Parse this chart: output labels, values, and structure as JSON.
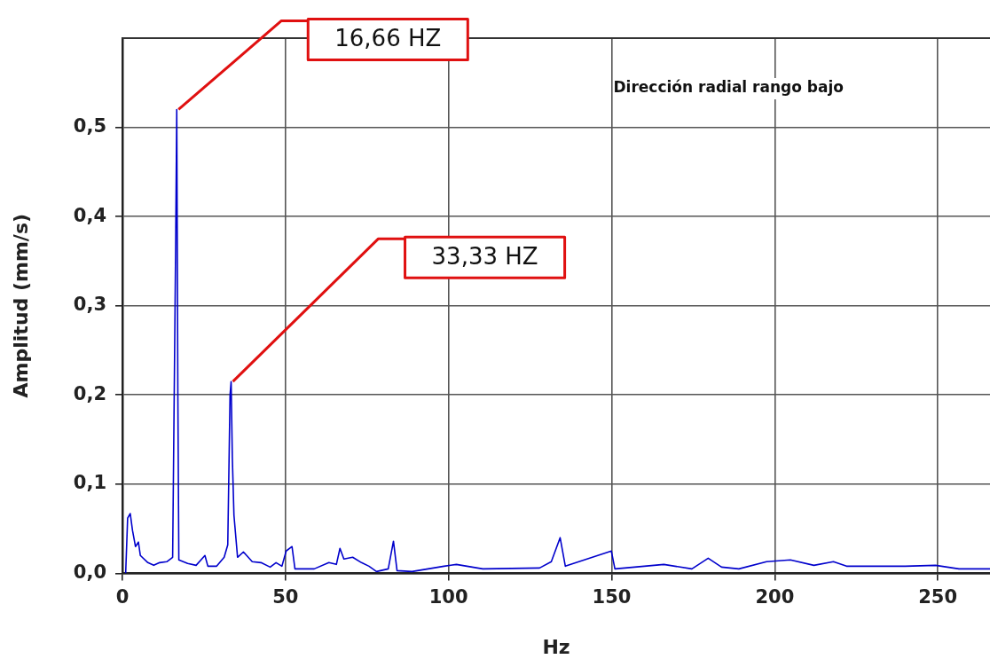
{
  "chart_data": {
    "type": "line",
    "xlabel": "Hz",
    "ylabel": "Amplitud (mm/s)",
    "annotations": [
      "Dirección radial rango bajo",
      {
        "text": "16,66 HZ",
        "x": 16.66,
        "y": 0.52
      },
      {
        "text": "33,33 HZ",
        "x": 33.33,
        "y": 0.215
      }
    ],
    "series": [
      {
        "color": "#0000cc",
        "x": [
          1.0,
          1.6,
          2.4,
          3.1,
          4.0,
          4.9,
          5.5,
          7.8,
          9.6,
          11.4,
          13.6,
          15.4,
          16.3,
          16.66,
          17.0,
          17.3,
          20,
          22.6,
          25.3,
          26.2,
          28.9,
          31.2,
          32.3,
          33.0,
          33.33,
          33.7,
          34.2,
          35.3,
          37.1,
          39.8,
          42.5,
          45.3,
          47.1,
          48.9,
          50.2,
          52.0,
          52.9,
          58.8,
          63.3,
          65.6,
          66.7,
          67.9,
          70.6,
          73.3,
          75.6,
          77.9,
          81.5,
          83.1,
          84.2,
          88.8,
          98.6,
          102.4,
          110.5,
          127.9,
          131.5,
          134.2,
          135.8,
          149.9,
          151,
          166,
          174.6,
          179.6,
          183.7,
          189,
          197.5,
          204.8,
          212,
          218,
          222,
          231,
          240,
          249.3,
          256.5,
          266
        ],
        "values": [
          0,
          0.062,
          0.067,
          0.048,
          0.03,
          0.035,
          0.02,
          0.012,
          0.009,
          0.012,
          0.013,
          0.018,
          0.36,
          0.52,
          0.2,
          0.015,
          0.011,
          0.009,
          0.02,
          0.008,
          0.008,
          0.018,
          0.032,
          0.2,
          0.215,
          0.13,
          0.065,
          0.018,
          0.024,
          0.013,
          0.012,
          0.007,
          0.012,
          0.008,
          0.025,
          0.03,
          0.005,
          0.005,
          0.012,
          0.01,
          0.028,
          0.016,
          0.018,
          0.012,
          0.008,
          0.002,
          0.005,
          0.036,
          0.003,
          0.002,
          0.008,
          0.01,
          0.005,
          0.006,
          0.013,
          0.04,
          0.008,
          0.025,
          0.005,
          0.01,
          0.005,
          0.017,
          0.007,
          0.005,
          0.013,
          0.015,
          0.009,
          0.013,
          0.008,
          0.008,
          0.008,
          0.009,
          0.005,
          0.005
        ]
      }
    ],
    "xlim": [
      0,
      266
    ],
    "xticks": [
      0,
      50,
      100,
      150,
      200,
      250
    ],
    "ylim": [
      0,
      0.6
    ],
    "yticks": [
      {
        "value": 0,
        "label": "0,0"
      },
      {
        "value": 0.1,
        "label": "0,1"
      },
      {
        "value": 0.2,
        "label": "0,2"
      },
      {
        "value": 0.3,
        "label": "0,3"
      },
      {
        "value": 0.4,
        "label": "0,4"
      },
      {
        "value": 0.5,
        "label": "0,5"
      }
    ],
    "grid": true,
    "legend": false,
    "marker": "none",
    "line_style": "solid"
  }
}
